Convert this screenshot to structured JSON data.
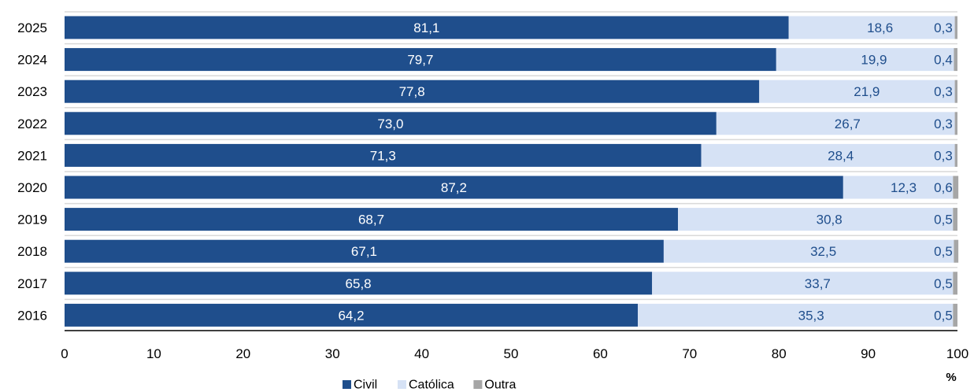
{
  "chart_data": {
    "type": "bar",
    "orientation": "horizontal",
    "stacked": true,
    "categories": [
      "2025",
      "2024",
      "2023",
      "2022",
      "2021",
      "2020",
      "2019",
      "2018",
      "2017",
      "2016"
    ],
    "series": [
      {
        "name": "Civil",
        "color": "#1f4e8c",
        "label_color": "#ffffff",
        "values": [
          81.1,
          79.7,
          77.8,
          73.0,
          71.3,
          87.2,
          68.7,
          67.1,
          65.8,
          64.2
        ]
      },
      {
        "name": "Católica",
        "color": "#d6e2f5",
        "label_color": "#1f4e8c",
        "values": [
          18.6,
          19.9,
          21.9,
          26.7,
          28.4,
          12.3,
          30.8,
          32.5,
          33.7,
          35.3
        ]
      },
      {
        "name": "Outra",
        "color": "#a6a6a6",
        "label_color": "#1f4e8c",
        "values": [
          0.3,
          0.4,
          0.3,
          0.3,
          0.3,
          0.6,
          0.5,
          0.5,
          0.5,
          0.5
        ]
      }
    ],
    "value_labels": [
      [
        "81,1",
        "79,7",
        "77,8",
        "73,0",
        "71,3",
        "87,2",
        "68,7",
        "67,1",
        "65,8",
        "64,2"
      ],
      [
        "18,6",
        "19,9",
        "21,9",
        "26,7",
        "28,4",
        "12,3",
        "30,8",
        "32,5",
        "33,7",
        "35,3"
      ],
      [
        "0,3",
        "0,4",
        "0,3",
        "0,3",
        "0,3",
        "0,6",
        "0,5",
        "0,5",
        "0,5",
        "0,5"
      ]
    ],
    "xlim": [
      0,
      100
    ],
    "x_ticks": [
      "0",
      "10",
      "20",
      "30",
      "40",
      "50",
      "60",
      "70",
      "80",
      "90",
      "100"
    ],
    "x_unit": "%",
    "grid": false,
    "legend_position": "bottom"
  }
}
